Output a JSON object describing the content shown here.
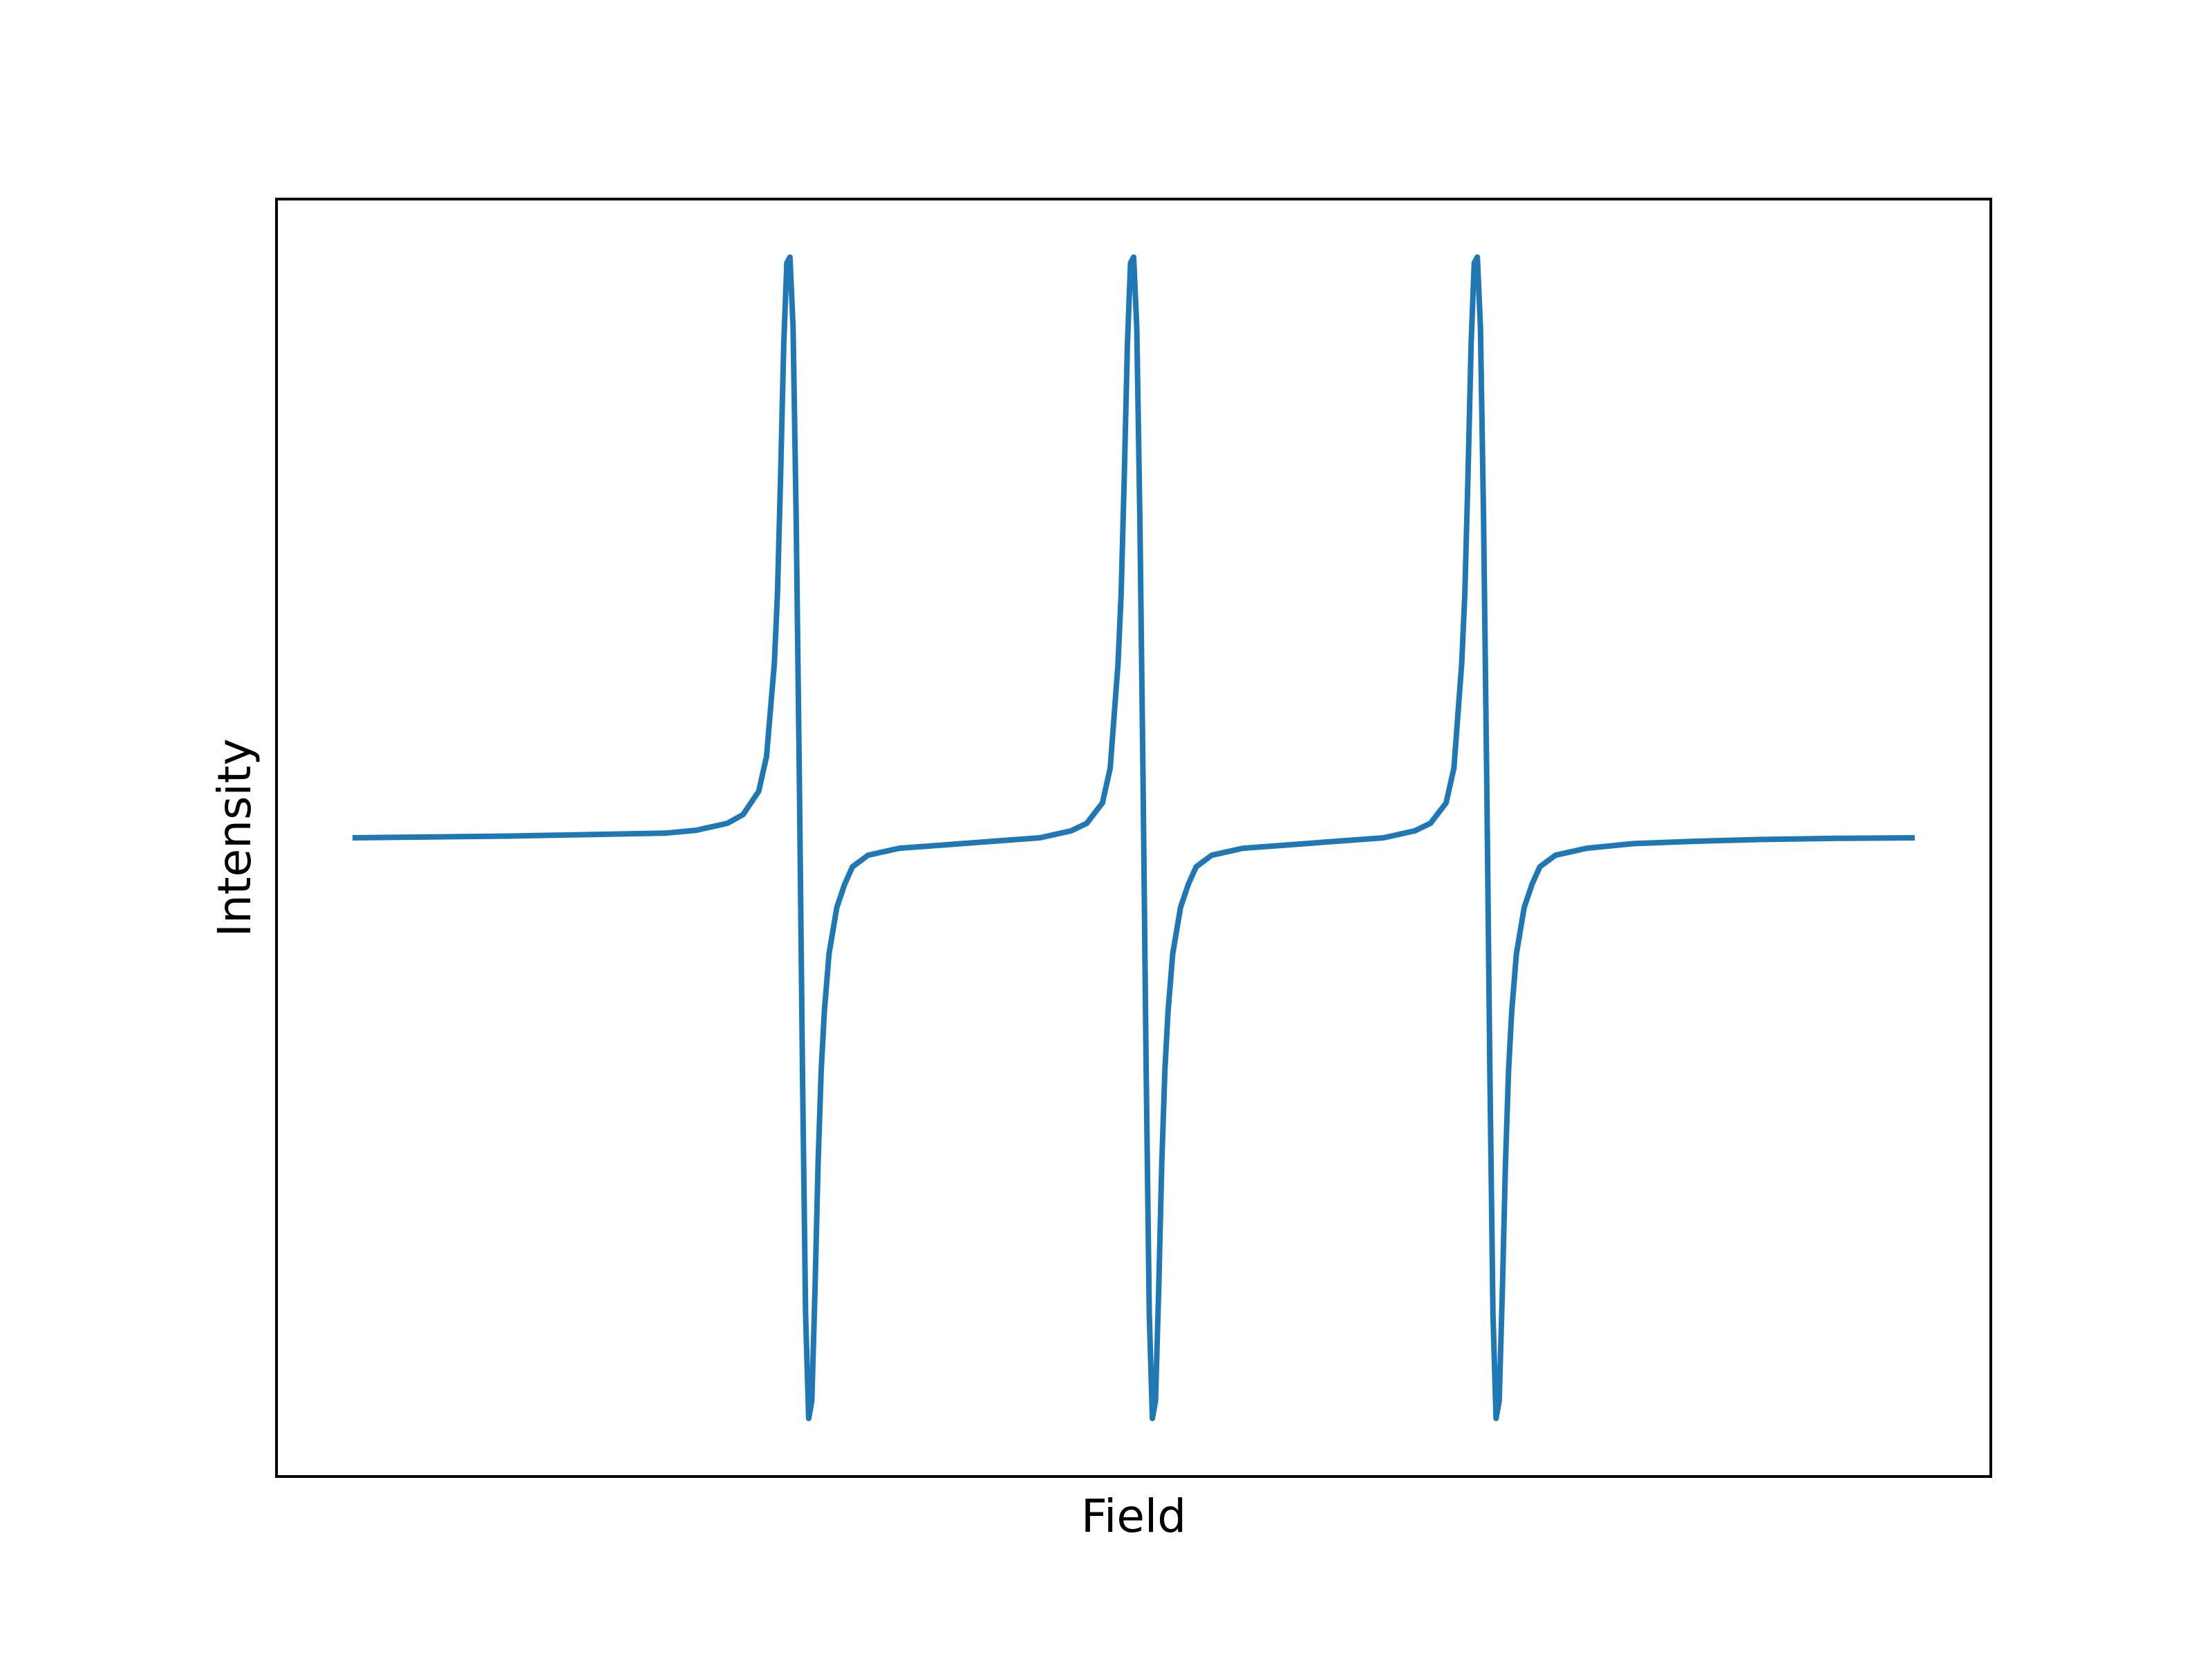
{
  "chart_data": {
    "type": "line",
    "title": "",
    "xlabel": "Field",
    "ylabel": "Intensity",
    "xlim": [
      0,
      1
    ],
    "ylim": [
      -1.1,
      1.1
    ],
    "grid": false,
    "legend": "none",
    "ticks": "none",
    "series": [
      {
        "color": "#1f77b4",
        "x": [
          0.0,
          0.1,
          0.2,
          0.22,
          0.24,
          0.25,
          0.26,
          0.265,
          0.27,
          0.272,
          0.274,
          0.276,
          0.278,
          0.28,
          0.282,
          0.284,
          0.286,
          0.288,
          0.29,
          0.292,
          0.294,
          0.296,
          0.298,
          0.3,
          0.302,
          0.305,
          0.31,
          0.315,
          0.32,
          0.33,
          0.35,
          0.38,
          0.41,
          0.44,
          0.46,
          0.47,
          0.48,
          0.485,
          0.49,
          0.492,
          0.494,
          0.496,
          0.498,
          0.5,
          0.502,
          0.504,
          0.506,
          0.508,
          0.51,
          0.512,
          0.514,
          0.516,
          0.518,
          0.52,
          0.522,
          0.525,
          0.53,
          0.535,
          0.54,
          0.55,
          0.57,
          0.6,
          0.63,
          0.66,
          0.68,
          0.69,
          0.7,
          0.705,
          0.71,
          0.712,
          0.714,
          0.716,
          0.718,
          0.72,
          0.722,
          0.724,
          0.726,
          0.728,
          0.73,
          0.732,
          0.734,
          0.736,
          0.738,
          0.74,
          0.742,
          0.745,
          0.75,
          0.755,
          0.76,
          0.77,
          0.79,
          0.82,
          0.86,
          0.9,
          0.95,
          1.0
        ],
        "y": [
          0.0,
          0.003,
          0.008,
          0.013,
          0.025,
          0.04,
          0.08,
          0.14,
          0.3,
          0.42,
          0.62,
          0.85,
          0.99,
          1.0,
          0.88,
          0.55,
          0.1,
          -0.4,
          -0.82,
          -1.0,
          -0.97,
          -0.78,
          -0.56,
          -0.4,
          -0.3,
          -0.2,
          -0.12,
          -0.08,
          -0.05,
          -0.03,
          -0.018,
          -0.012,
          -0.006,
          0.0,
          0.012,
          0.025,
          0.06,
          0.12,
          0.3,
          0.42,
          0.62,
          0.85,
          0.99,
          1.0,
          0.88,
          0.55,
          0.1,
          -0.4,
          -0.82,
          -1.0,
          -0.97,
          -0.78,
          -0.56,
          -0.4,
          -0.3,
          -0.2,
          -0.12,
          -0.08,
          -0.05,
          -0.03,
          -0.018,
          -0.012,
          -0.006,
          0.0,
          0.012,
          0.025,
          0.06,
          0.12,
          0.3,
          0.42,
          0.62,
          0.85,
          0.99,
          1.0,
          0.88,
          0.55,
          0.1,
          -0.4,
          -0.82,
          -1.0,
          -0.97,
          -0.78,
          -0.56,
          -0.4,
          -0.3,
          -0.2,
          -0.12,
          -0.08,
          -0.05,
          -0.03,
          -0.018,
          -0.01,
          -0.006,
          -0.003,
          -0.001,
          0.0
        ]
      }
    ]
  }
}
